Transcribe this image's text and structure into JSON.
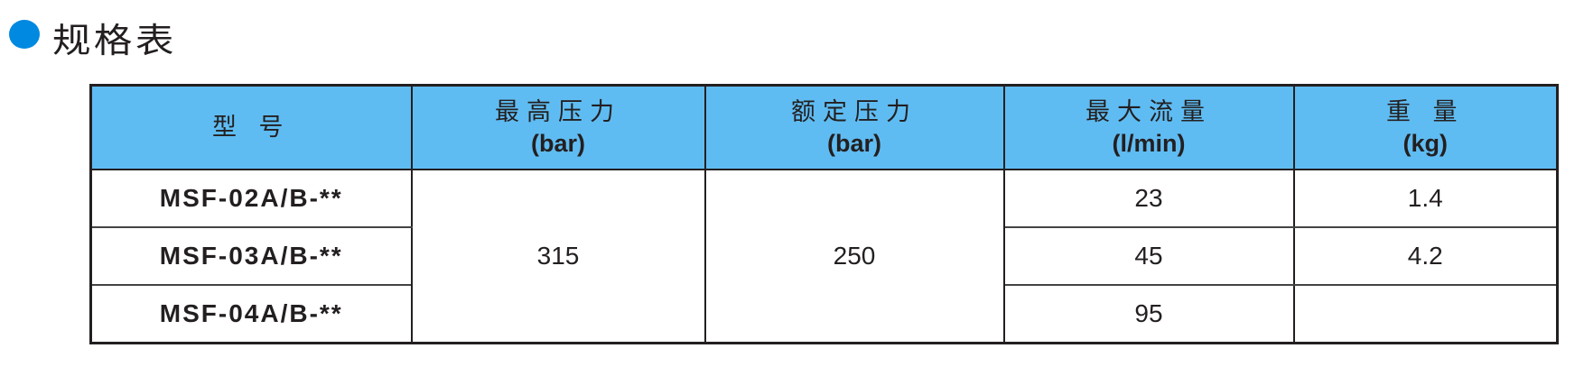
{
  "title": "规格表",
  "accent_color": "#0089e0",
  "header_color": "#5fbcf2",
  "table": {
    "headers": [
      {
        "label": "型 号",
        "unit": ""
      },
      {
        "label": "最高压力",
        "unit": "(bar)"
      },
      {
        "label": "额定压力",
        "unit": "(bar)"
      },
      {
        "label": "最大流量",
        "unit": "(l/min)"
      },
      {
        "label": "重 量",
        "unit": "(kg)"
      }
    ],
    "max_pressure": "315",
    "rated_pressure": "250",
    "rows": [
      {
        "model": "MSF-02A/B-**",
        "flow": "23",
        "weight": "1.4"
      },
      {
        "model": "MSF-03A/B-**",
        "flow": "45",
        "weight": "4.2"
      },
      {
        "model": "MSF-04A/B-**",
        "flow": "95",
        "weight": ""
      }
    ]
  }
}
